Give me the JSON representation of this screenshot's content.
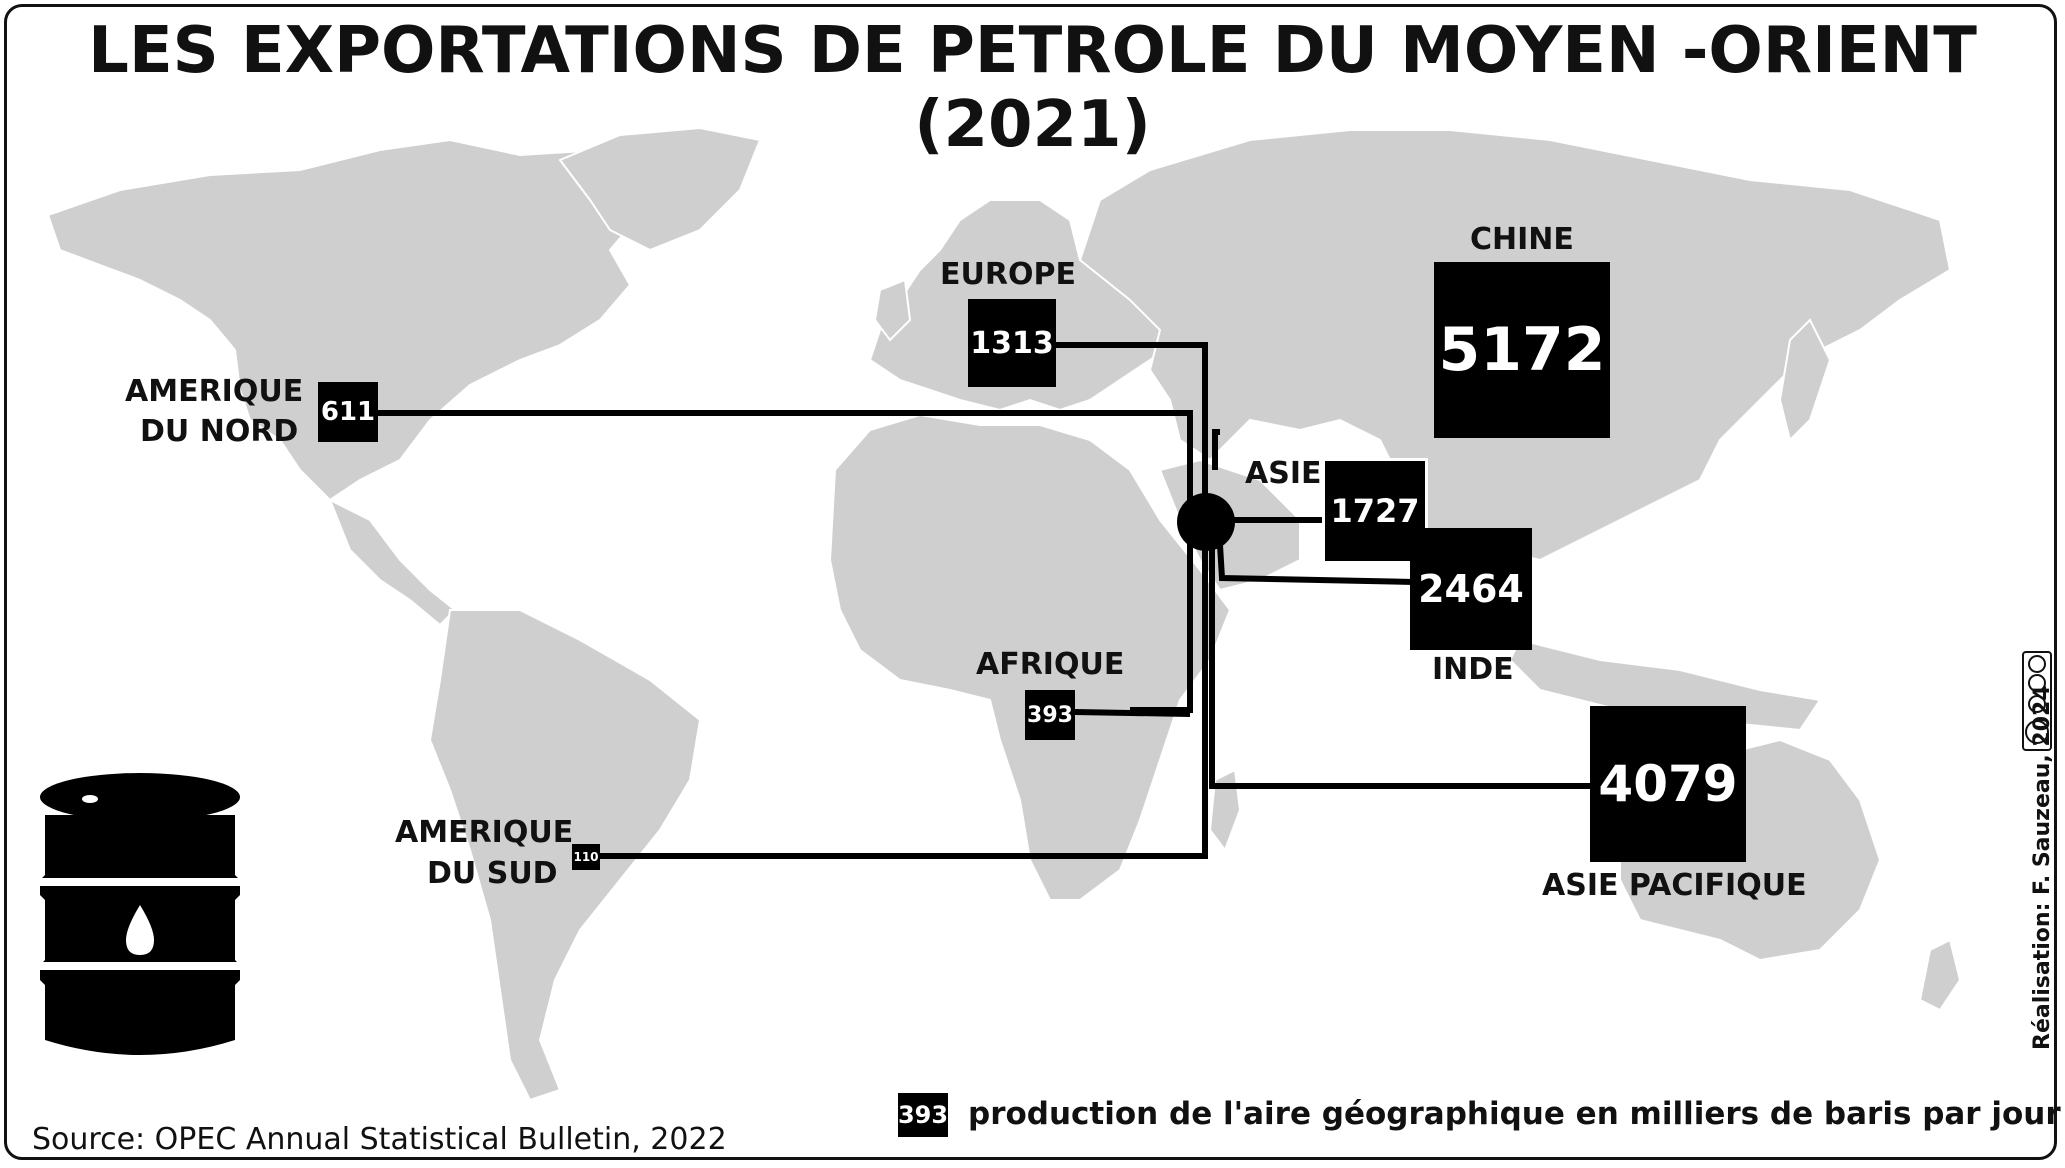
{
  "title": "LES EXPORTATIONS DE PETROLE DU MOYEN -ORIENT (2021)",
  "regions": [
    {
      "id": "chine",
      "label": "CHINE",
      "value": "5172"
    },
    {
      "id": "europe",
      "label": "EUROPE",
      "value": "1313"
    },
    {
      "id": "amerique-nord",
      "label_line1": "AMERIQUE",
      "label_line2": "DU NORD",
      "value": "611"
    },
    {
      "id": "asie",
      "label": "ASIE",
      "value": "1727"
    },
    {
      "id": "inde",
      "label": "INDE",
      "value": "2464"
    },
    {
      "id": "afrique",
      "label": "AFRIQUE",
      "value": "393"
    },
    {
      "id": "asie-pacifique",
      "label": "ASIE PACIFIQUE",
      "value": "4079"
    },
    {
      "id": "amerique-sud",
      "label_line1": "AMERIQUE",
      "label_line2": "DU SUD",
      "value": "110"
    }
  ],
  "legend": {
    "sample_value": "393",
    "text": "production de l'aire géographique en milliers de baris par jour"
  },
  "source": "Source: OPEC Annual Statistical Bulletin, 2022",
  "credit": "Réalisation: F. Sauzeau, 2024",
  "license_icon": "creative-commons-by-nc-sa-icon",
  "barrel_icon": "oil-barrel-icon",
  "colors": {
    "land": "#cfcfcf",
    "ink": "#000000",
    "background": "#ffffff"
  }
}
